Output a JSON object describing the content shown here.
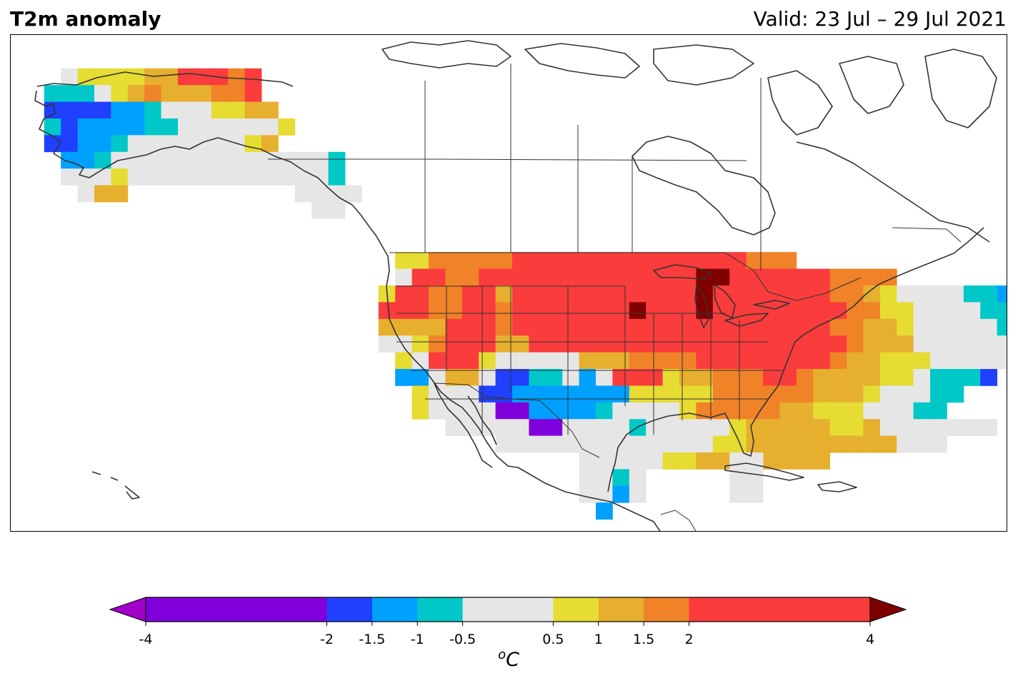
{
  "header": {
    "title": "T2m anomaly",
    "valid": "Valid: 23 Jul – 29 Jul 2021"
  },
  "colorbar": {
    "unit": "oC",
    "unit_base": "C",
    "unit_sup": "o",
    "extend": "both",
    "boundaries": [
      -4,
      -2,
      -1.5,
      -1,
      -0.5,
      0.5,
      1,
      1.5,
      2,
      4
    ],
    "tick_labels": [
      "-4",
      "-2",
      "-1.5",
      "-1",
      "-0.5",
      "0.5",
      "1",
      "1.5",
      "2",
      "4"
    ],
    "colors": [
      "#8000dc",
      "#2040ff",
      "#00a0ff",
      "#00c8c8",
      "#e6e6e6",
      "#e6dc32",
      "#e6af2d",
      "#f08228",
      "#fa3c3c"
    ],
    "under_color": "#a000c8",
    "over_color": "#800000"
  },
  "legend": {
    "anomaly_classes": [
      {
        "code": 1,
        "range": "< -4",
        "color": "#a000c8"
      },
      {
        "code": 2,
        "range": "-4 to -2",
        "color": "#8000dc"
      },
      {
        "code": 3,
        "range": "-2 to -1.5",
        "color": "#2040ff"
      },
      {
        "code": 4,
        "range": "-1.5 to -1",
        "color": "#00a0ff"
      },
      {
        "code": 5,
        "range": "-1 to -0.5",
        "color": "#00c8c8"
      },
      {
        "code": 6,
        "range": "-0.5 to 0.5",
        "color": "#e6e6e6"
      },
      {
        "code": 7,
        "range": "0.5 to 1",
        "color": "#e6dc32"
      },
      {
        "code": 8,
        "range": "1 to 1.5",
        "color": "#e6af2d"
      },
      {
        "code": 9,
        "range": "1.5 to 2",
        "color": "#f08228"
      },
      {
        "code": 10,
        "range": "2 to 4",
        "color": "#fa3c3c"
      },
      {
        "code": 11,
        "range": "> 4",
        "color": "#800000"
      }
    ]
  },
  "map": {
    "region": "North America",
    "grid_rows": [
      {
        "c0": 3,
        "codes": [
          6,
          7,
          7,
          7,
          7,
          8,
          8,
          10,
          10,
          10,
          9,
          10
        ]
      },
      {
        "c0": 2,
        "codes": [
          5,
          5,
          5,
          6,
          7,
          8,
          9,
          8,
          8,
          8,
          9,
          9,
          10
        ]
      },
      {
        "c0": 2,
        "codes": [
          3,
          3,
          3,
          3,
          4,
          4,
          5,
          6,
          6,
          6,
          7,
          7,
          8,
          8
        ]
      },
      {
        "c0": 2,
        "codes": [
          5,
          3,
          4,
          4,
          4,
          4,
          5,
          5,
          6,
          6,
          6,
          6,
          6,
          6,
          7
        ]
      },
      {
        "c0": 2,
        "codes": [
          3,
          3,
          4,
          4,
          5,
          6,
          6,
          6,
          6,
          6,
          6,
          6,
          7,
          8
        ]
      },
      {
        "c0": 3,
        "codes": [
          4,
          4,
          5,
          6,
          6,
          6,
          6,
          6,
          6,
          6,
          6,
          6,
          6,
          6
        ],
        "more": [
          {
            "c0": 16,
            "codes": [
              6,
              6,
              6,
              5
            ]
          }
        ]
      },
      {
        "c0": 3,
        "codes": [
          6,
          6,
          6,
          7,
          6,
          6,
          6,
          6,
          6,
          6,
          6,
          6,
          6,
          6
        ],
        "more": [
          {
            "c0": 17,
            "codes": [
              6,
              6,
              5
            ]
          }
        ]
      },
      {
        "c0": 4,
        "codes": [
          6,
          8,
          8
        ],
        "more": [
          {
            "c0": 17,
            "codes": [
              6,
              6,
              6,
              6
            ]
          }
        ]
      },
      {
        "c0": 18,
        "codes": [
          6,
          6
        ]
      },
      {
        "c0": 23,
        "codes": [
          7,
          7,
          9,
          9,
          9,
          9,
          9,
          10,
          10,
          10,
          10,
          10,
          10,
          10,
          10,
          10,
          10,
          10,
          10,
          10,
          10,
          9,
          9,
          9
        ]
      },
      {
        "c0": 23,
        "codes": [
          6,
          10,
          10,
          9,
          9,
          10,
          10,
          10,
          10,
          10,
          10,
          10,
          10,
          10,
          10,
          10,
          10,
          10,
          11,
          11,
          10,
          10,
          10,
          10,
          10,
          10,
          9,
          9,
          9,
          9
        ]
      },
      {
        "c0": 22,
        "codes": [
          7,
          10,
          10,
          9,
          9,
          10,
          10,
          8,
          10,
          10,
          10,
          10,
          10,
          10,
          10,
          10,
          10,
          10,
          10,
          11,
          10,
          10,
          10,
          10,
          10,
          10,
          10,
          9,
          9,
          8,
          7,
          6,
          6,
          6,
          6,
          5,
          5,
          4,
          4,
          5,
          3,
          3
        ]
      },
      {
        "c0": 22,
        "codes": [
          10,
          10,
          10,
          9,
          9,
          10,
          10,
          9,
          10,
          10,
          10,
          10,
          10,
          10,
          10,
          11,
          10,
          10,
          10,
          11,
          10,
          10,
          10,
          10,
          10,
          10,
          10,
          10,
          9,
          9,
          7,
          7,
          6,
          6,
          6,
          6,
          5,
          5,
          4,
          4,
          5,
          4,
          6
        ]
      },
      {
        "c0": 22,
        "codes": [
          8,
          8,
          8,
          8,
          10,
          10,
          10,
          9,
          10,
          10,
          10,
          10,
          10,
          10,
          10,
          10,
          10,
          10,
          10,
          10,
          10,
          10,
          10,
          10,
          10,
          10,
          10,
          9,
          9,
          8,
          8,
          7,
          6,
          6,
          6,
          6,
          6,
          5,
          5,
          5,
          6
        ]
      },
      {
        "c0": 22,
        "codes": [
          6,
          6,
          7,
          9,
          10,
          10,
          10,
          8,
          8,
          10,
          10,
          10,
          10,
          10,
          10,
          10,
          10,
          10,
          10,
          10,
          10,
          10,
          10,
          10,
          10,
          10,
          10,
          10,
          9,
          8,
          8,
          8,
          6,
          6,
          6,
          6,
          6,
          6,
          6
        ]
      },
      {
        "c0": 23,
        "codes": [
          7,
          6,
          10,
          10,
          10,
          7,
          6,
          6,
          6,
          6,
          6,
          8,
          8,
          8,
          9,
          9,
          9,
          9,
          10,
          10,
          10,
          10,
          10,
          10,
          10,
          10,
          9,
          8,
          8,
          7,
          7,
          7,
          6,
          6,
          6,
          6,
          6
        ]
      },
      {
        "c0": 23,
        "codes": [
          4,
          4,
          6,
          8,
          8,
          6,
          3,
          3,
          5,
          5,
          6,
          4,
          6,
          10,
          10,
          10,
          7,
          8,
          8,
          9,
          9,
          9,
          10,
          10,
          9,
          8,
          8,
          8,
          8,
          7,
          7,
          6,
          5,
          5,
          5,
          3
        ]
      },
      {
        "c0": 24,
        "codes": [
          7,
          6,
          6,
          6,
          3,
          3,
          4,
          4,
          4,
          4,
          4,
          4,
          4,
          7,
          7,
          7,
          7,
          7,
          9,
          9,
          9,
          9,
          9,
          9,
          8,
          8,
          8,
          7,
          6,
          6,
          6,
          5,
          5
        ]
      },
      {
        "c0": 24,
        "codes": [
          7,
          6,
          6,
          6,
          6,
          2,
          2,
          4,
          4,
          4,
          4,
          5,
          6,
          6,
          6,
          6,
          7,
          9,
          9,
          9,
          9,
          9,
          8,
          8,
          7,
          7,
          7,
          6,
          6,
          6,
          5,
          5
        ]
      },
      {
        "c0": 26,
        "codes": [
          6,
          6,
          6,
          6,
          6,
          2,
          2,
          6,
          6,
          6,
          6,
          5,
          6,
          6,
          6,
          6,
          6,
          7,
          8,
          8,
          8,
          8,
          8,
          7,
          7,
          8,
          6,
          6,
          6,
          6,
          6,
          6,
          6
        ]
      },
      {
        "c0": 29,
        "codes": [
          6,
          6,
          6,
          6,
          6,
          6,
          6,
          6,
          6,
          6,
          6,
          6,
          6,
          7,
          7,
          8,
          8,
          8,
          8,
          8,
          8,
          8,
          8,
          8,
          6,
          6,
          6
        ]
      },
      {
        "c0": 34,
        "codes": [
          6,
          6,
          6,
          6,
          6,
          7,
          7,
          8,
          8,
          8,
          8,
          8,
          8,
          8,
          8
        ],
        "more": [
          {
            "c0": 43,
            "codes": [
              6,
              6
            ]
          }
        ]
      },
      {
        "c0": 34,
        "codes": [
          6,
          6,
          5,
          6
        ],
        "more": [
          {
            "c0": 43,
            "codes": [
              6,
              6
            ]
          }
        ]
      },
      {
        "c0": 34,
        "codes": [
          6,
          6,
          4,
          6
        ],
        "more": [
          {
            "c0": 43,
            "codes": [
              6,
              6
            ]
          }
        ]
      },
      {
        "c0": 35,
        "codes": [
          4
        ]
      }
    ],
    "alaska_rows": [
      {
        "c0": 3,
        "codes": [
          6,
          7,
          7,
          7,
          7,
          8,
          8,
          10,
          10,
          10,
          9,
          10
        ]
      },
      {
        "c0": 2,
        "codes": [
          5,
          5,
          5,
          6,
          7,
          8,
          9,
          8,
          8,
          8,
          9,
          9,
          10
        ]
      },
      {
        "c0": 2,
        "codes": [
          3,
          3,
          3,
          3,
          4,
          4,
          5,
          6,
          6,
          6,
          7,
          7,
          8,
          8
        ]
      },
      {
        "c0": 2,
        "codes": [
          5,
          3,
          4,
          4,
          4,
          4,
          5,
          5,
          6,
          6,
          6,
          6,
          6,
          6,
          7
        ]
      },
      {
        "c0": 2,
        "codes": [
          3,
          3,
          4,
          4,
          5,
          6,
          6,
          6,
          6,
          6,
          6,
          6,
          7,
          8
        ]
      },
      {
        "c0": 3,
        "codes": [
          4,
          4,
          5,
          6,
          6,
          6,
          6,
          6,
          6,
          6,
          6,
          6,
          6,
          6
        ]
      },
      {
        "c0": 3,
        "codes": [
          6,
          6,
          6,
          7,
          6,
          6,
          6,
          6,
          6,
          6,
          6,
          6,
          6,
          6
        ]
      },
      {
        "c0": 4,
        "codes": [
          6,
          8,
          8
        ]
      }
    ],
    "canada_nw_rows": [
      {
        "c0": 16,
        "codes": [
          6,
          6,
          6,
          5
        ]
      },
      {
        "c0": 17,
        "codes": [
          6,
          6,
          5
        ]
      },
      {
        "c0": 17,
        "codes": [
          6,
          6,
          6,
          6
        ]
      },
      {
        "c0": 18,
        "codes": [
          6,
          6
        ]
      }
    ]
  }
}
